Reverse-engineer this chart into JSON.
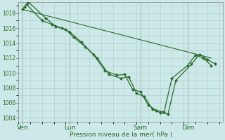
{
  "background_color": "#cce8e8",
  "grid_color": "#aacccc",
  "line_color": "#2d6b2d",
  "marker_color": "#2d6b2d",
  "xlabel": "Pression niveau de la mer( hPa )",
  "ylim": [
    1003.5,
    1019.5
  ],
  "yticks": [
    1004,
    1006,
    1008,
    1010,
    1012,
    1014,
    1016,
    1018
  ],
  "xtick_labels": [
    "Ven",
    "Lun",
    "Sam",
    "Dim"
  ],
  "xtick_positions": [
    0,
    24,
    60,
    84
  ],
  "xlim": [
    -2,
    102
  ],
  "trend_line": {
    "x": [
      0,
      96
    ],
    "y": [
      1018.5,
      1012.0
    ]
  },
  "series1_x": [
    0,
    2,
    10,
    15,
    20,
    24,
    30,
    36,
    42,
    48,
    52,
    56,
    60,
    64,
    68,
    72,
    76,
    84,
    88,
    92,
    96
  ],
  "series1_y": [
    1018.5,
    1019.2,
    1017.0,
    1016.5,
    1016.0,
    1015.5,
    1014.1,
    1012.5,
    1010.3,
    1009.7,
    1009.8,
    1007.8,
    1007.5,
    1005.7,
    1005.0,
    1004.8,
    1009.3,
    1011.0,
    1012.4,
    1012.0,
    1011.0
  ],
  "series2_x": [
    1,
    3,
    12,
    17,
    22,
    26,
    32,
    38,
    44,
    50,
    54,
    58,
    62,
    66,
    70,
    74,
    78,
    86,
    90,
    94,
    98
  ],
  "series2_y": [
    1018.8,
    1019.5,
    1017.3,
    1016.2,
    1015.8,
    1014.8,
    1013.5,
    1012.0,
    1009.8,
    1009.3,
    1009.5,
    1007.3,
    1006.8,
    1005.2,
    1004.7,
    1004.5,
    1009.0,
    1011.2,
    1012.5,
    1011.8,
    1011.2
  ]
}
